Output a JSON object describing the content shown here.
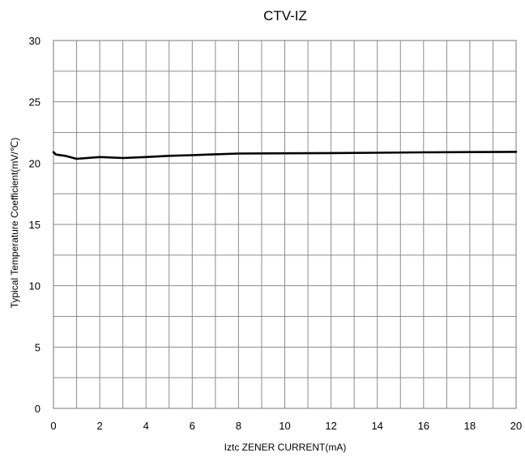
{
  "chart_data": {
    "type": "line",
    "title": "CTV-IZ",
    "xlabel": "Iztc ZENER CURRENT(mA)",
    "ylabel": "Typical Temperature Coefficient(mV/℃)",
    "xlim": [
      0,
      20
    ],
    "ylim": [
      0,
      30
    ],
    "xticks": [
      "0",
      "2",
      "4",
      "6",
      "8",
      "10",
      "12",
      "14",
      "16",
      "18",
      "20"
    ],
    "yticks": [
      "0",
      "5",
      "10",
      "15",
      "20",
      "25",
      "30"
    ],
    "grid": true,
    "series": [
      {
        "x": [
          0,
          0.1,
          0.5,
          1,
          2,
          3,
          4,
          5,
          6,
          7,
          8,
          10,
          12,
          14,
          16,
          18,
          20
        ],
        "y": [
          20.9,
          20.7,
          20.6,
          20.35,
          20.5,
          20.42,
          20.5,
          20.6,
          20.65,
          20.72,
          20.78,
          20.8,
          20.82,
          20.85,
          20.88,
          20.9,
          20.92
        ]
      }
    ],
    "colors": {
      "series": "#000000",
      "grid": "#8c8c8c"
    }
  }
}
